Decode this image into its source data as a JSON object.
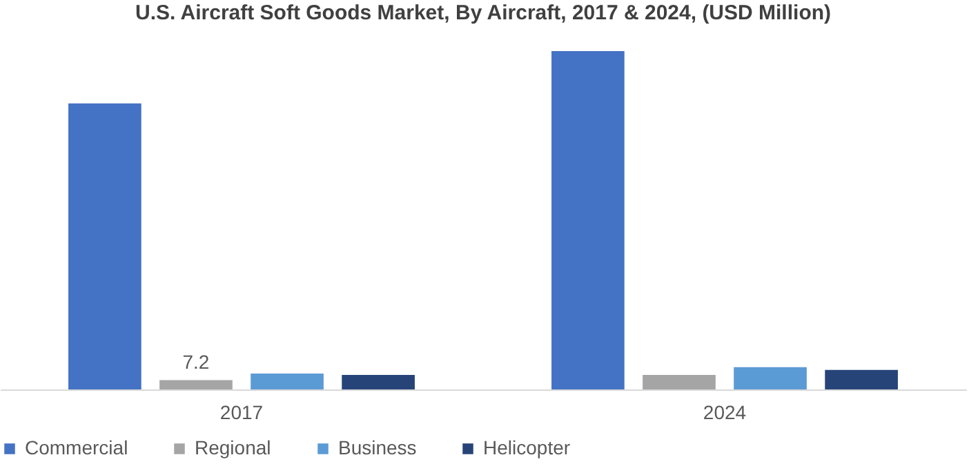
{
  "chart_data": {
    "type": "bar",
    "title": "U.S. Aircraft Soft Goods Market, By Aircraft, 2017 & 2024, (USD Million)",
    "categories": [
      "2017",
      "2024"
    ],
    "legend": "bottom",
    "grid": false,
    "series": [
      {
        "name": "Commercial",
        "color": "#4472c4",
        "values": [
          219,
          259
        ]
      },
      {
        "name": "Regional",
        "color": "#a5a5a5",
        "values": [
          7.2,
          11.1
        ],
        "value_labels": [
          "7.2",
          null
        ]
      },
      {
        "name": "Business",
        "color": "#5b9bd5",
        "values": [
          12.2,
          17.1
        ]
      },
      {
        "name": "Helicopter",
        "color": "#264478",
        "values": [
          11.1,
          14.9
        ]
      }
    ]
  }
}
